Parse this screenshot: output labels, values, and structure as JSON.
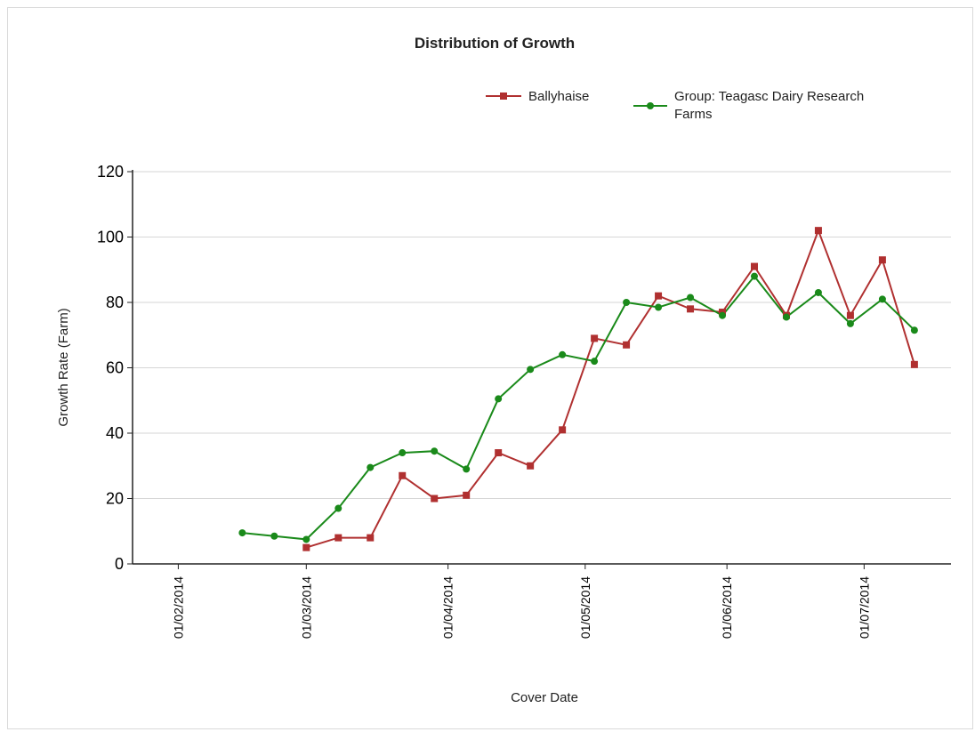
{
  "chart_data": {
    "type": "line",
    "title": "Distribution of Growth",
    "xlabel": "Cover Date",
    "ylabel": "Growth Rate (Farm)",
    "ylim": [
      0,
      120
    ],
    "yticks": [
      "0",
      "20",
      "40",
      "60",
      "80",
      "100",
      "120"
    ],
    "xlim": [
      "2014-01-22",
      "2014-07-20"
    ],
    "xticks": [
      {
        "date": "2014-02-01",
        "label": "01/02/2014"
      },
      {
        "date": "2014-03-01",
        "label": "01/03/2014"
      },
      {
        "date": "2014-04-01",
        "label": "01/04/2014"
      },
      {
        "date": "2014-05-01",
        "label": "01/05/2014"
      },
      {
        "date": "2014-06-01",
        "label": "01/06/2014"
      },
      {
        "date": "2014-07-01",
        "label": "01/07/2014"
      }
    ],
    "grid": "horizontal",
    "legend": "top-right",
    "series": [
      {
        "name": "Ballyhaise",
        "color": "#b03030",
        "marker": "square",
        "points": [
          {
            "x": "2014-03-01",
            "y": 5
          },
          {
            "x": "2014-03-08",
            "y": 8
          },
          {
            "x": "2014-03-15",
            "y": 8
          },
          {
            "x": "2014-03-22",
            "y": 27
          },
          {
            "x": "2014-03-29",
            "y": 20
          },
          {
            "x": "2014-04-05",
            "y": 21
          },
          {
            "x": "2014-04-12",
            "y": 34
          },
          {
            "x": "2014-04-19",
            "y": 30
          },
          {
            "x": "2014-04-26",
            "y": 41
          },
          {
            "x": "2014-05-03",
            "y": 69
          },
          {
            "x": "2014-05-10",
            "y": 67
          },
          {
            "x": "2014-05-17",
            "y": 82
          },
          {
            "x": "2014-05-24",
            "y": 78
          },
          {
            "x": "2014-05-31",
            "y": 77
          },
          {
            "x": "2014-06-07",
            "y": 91
          },
          {
            "x": "2014-06-14",
            "y": 76
          },
          {
            "x": "2014-06-21",
            "y": 102
          },
          {
            "x": "2014-06-28",
            "y": 76
          },
          {
            "x": "2014-07-05",
            "y": 93
          },
          {
            "x": "2014-07-12",
            "y": 61
          }
        ]
      },
      {
        "name": "Group: Teagasc Dairy Research Farms",
        "color": "#1a8a1a",
        "marker": "circle",
        "points": [
          {
            "x": "2014-02-15",
            "y": 9.5
          },
          {
            "x": "2014-02-22",
            "y": 8.5
          },
          {
            "x": "2014-03-01",
            "y": 7.5
          },
          {
            "x": "2014-03-08",
            "y": 17
          },
          {
            "x": "2014-03-15",
            "y": 29.5
          },
          {
            "x": "2014-03-22",
            "y": 34
          },
          {
            "x": "2014-03-29",
            "y": 34.5
          },
          {
            "x": "2014-04-05",
            "y": 29
          },
          {
            "x": "2014-04-12",
            "y": 50.5
          },
          {
            "x": "2014-04-19",
            "y": 59.5
          },
          {
            "x": "2014-04-26",
            "y": 64
          },
          {
            "x": "2014-05-03",
            "y": 62
          },
          {
            "x": "2014-05-10",
            "y": 80
          },
          {
            "x": "2014-05-17",
            "y": 78.5
          },
          {
            "x": "2014-05-24",
            "y": 81.5
          },
          {
            "x": "2014-05-31",
            "y": 76
          },
          {
            "x": "2014-06-07",
            "y": 88
          },
          {
            "x": "2014-06-14",
            "y": 75.5
          },
          {
            "x": "2014-06-21",
            "y": 83
          },
          {
            "x": "2014-06-28",
            "y": 73.5
          },
          {
            "x": "2014-07-05",
            "y": 81
          },
          {
            "x": "2014-07-12",
            "y": 71.5
          }
        ]
      }
    ],
    "legend_entries": [
      {
        "line1": "Ballyhaise",
        "line2": ""
      },
      {
        "line1": "Group: Teagasc Dairy Research",
        "line2": "Farms"
      }
    ]
  }
}
